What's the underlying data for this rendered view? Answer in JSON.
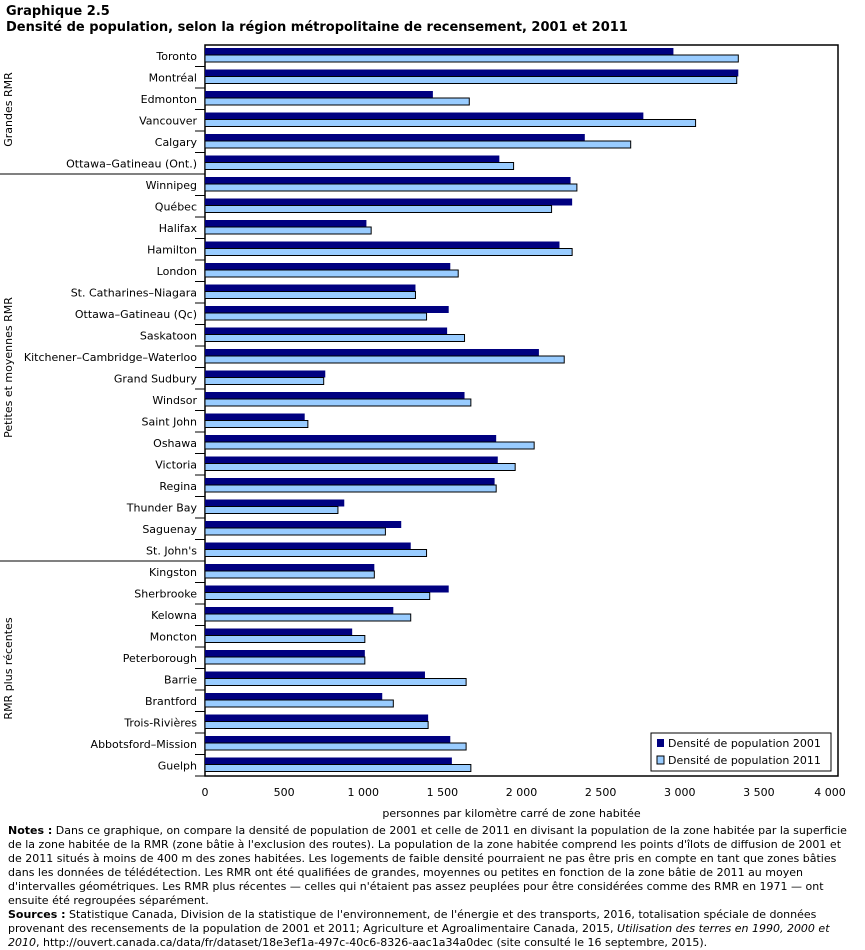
{
  "header": {
    "label": "Graphique  2.5",
    "title": "Densité de population,  selon la région  métropolitaine  de recensement, 2001 et 2011"
  },
  "chart_data": {
    "type": "bar",
    "orientation": "horizontal",
    "xlabel": "personnes par kilomètre carré de zone habitée",
    "xlim": [
      0,
      4000
    ],
    "xticks": [
      "0",
      "500",
      "1 000",
      "1 500",
      "2 000",
      "2 500",
      "3 000",
      "3 500",
      "4 000"
    ],
    "legend_position": "bottom-right",
    "colors": {
      "2001": "#000080",
      "2011": "#99ccff"
    },
    "groups": [
      {
        "name": "Grandes RMR",
        "count": 6
      },
      {
        "name": "Petites et moyennes RMR",
        "count": 18
      },
      {
        "name": "RMR plus récentes",
        "count": 10
      }
    ],
    "categories": [
      "Toronto",
      "Montréal",
      "Edmonton",
      "Vancouver",
      "Calgary",
      "Ottawa–Gatineau (Ont.)",
      "Winnipeg",
      "Québec",
      "Halifax",
      "Hamilton",
      "London",
      "St. Catharines–Niagara",
      "Ottawa–Gatineau (Qc)",
      "Saskatoon",
      "Kitchener–Cambridge–Waterloo",
      "Grand Sudbury",
      "Windsor",
      "Saint John",
      "Oshawa",
      "Victoria",
      "Regina",
      "Thunder Bay",
      "Saguenay",
      "St. John's",
      "Kingston",
      "Sherbrooke",
      "Kelowna",
      "Moncton",
      "Peterborough",
      "Barrie",
      "Brantford",
      "Trois-Rivières",
      "Abbotsford–Mission",
      "Guelph"
    ],
    "series": [
      {
        "name": "Densité de population 2001",
        "values": [
          2960,
          3370,
          1440,
          2770,
          2400,
          1860,
          2310,
          2320,
          1020,
          2240,
          1550,
          1330,
          1540,
          1530,
          2110,
          760,
          1640,
          630,
          1840,
          1850,
          1830,
          880,
          1240,
          1300,
          1070,
          1540,
          1190,
          930,
          1010,
          1390,
          1120,
          1410,
          1550,
          1560
        ]
      },
      {
        "name": "Densité de population 2011",
        "values": [
          3370,
          3360,
          1670,
          3100,
          2690,
          1950,
          2350,
          2190,
          1050,
          2320,
          1600,
          1330,
          1400,
          1640,
          2270,
          750,
          1680,
          650,
          2080,
          1960,
          1840,
          840,
          1140,
          1400,
          1070,
          1420,
          1300,
          1010,
          1010,
          1650,
          1190,
          1410,
          1650,
          1680
        ]
      }
    ]
  },
  "notes": {
    "notes_label": "Notes :",
    "notes_text": " Dans ce graphique, on compare la densité de population de 2001 et celle de 2011 en divisant la population de la zone habitée par la superficie de la zone habitée de la RMR (zone bâtie à l'exclusion des routes). La population de la zone habitée comprend les points d'îlots de diffusion de 2001 et de 2011 situés à moins de 400 m des zones habitées. Les logements de faible densité pourraient ne pas être pris en compte en tant que zones bâties dans les données de télédétection. Les RMR ont été qualifiées de grandes, moyennes ou petites en fonction de la zone bâtie de 2011 au moyen d'intervalles géométriques. Les RMR plus récentes — celles qui n'étaient pas assez peuplées pour être considérées comme des RMR en 1971 — ont ensuite été regroupées séparément.",
    "sources_label": "Sources :",
    "sources_text": " Statistique Canada, Division de la statistique de l'environnement, de l'énergie et des transports, 2016, totalisation spéciale de données provenant des recensements de la population de 2001 et 2011; Agriculture et Agroalimentaire Canada, 2015, ",
    "sources_italic": "Utilisation des terres en 1990, 2000 et 2010",
    "sources_end": ", http://ouvert.canada.ca/data/fr/dataset/18e3ef1a-497c-40c6-8326-aac1a34a0dec (site consulté le 16 septembre, 2015)."
  }
}
